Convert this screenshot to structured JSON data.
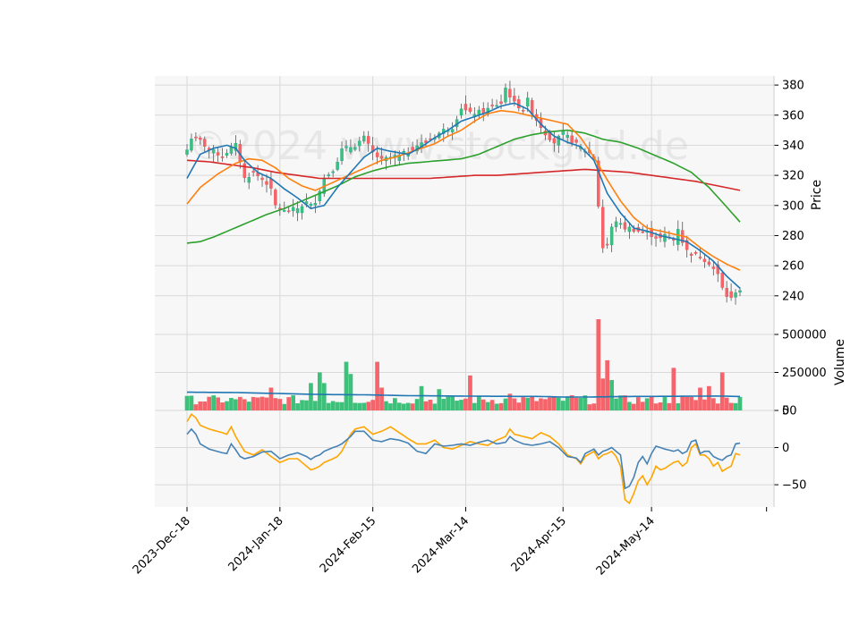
{
  "chart_data": {
    "type": "candlestick",
    "watermark": "©2024 www.stockgrid.de",
    "panels": {
      "price": {
        "ylabel": "Price",
        "ylim": [
          228,
          386
        ],
        "ticks": [
          240,
          260,
          280,
          300,
          320,
          340,
          360,
          380
        ]
      },
      "volume": {
        "ylabel": "Volume",
        "ylim": [
          0,
          600000
        ],
        "ticks": [
          0,
          250000,
          500000
        ],
        "tick_labels": [
          "0",
          "250000",
          "500000"
        ]
      },
      "oscillator": {
        "ylim": [
          -80,
          50
        ],
        "ticks": [
          -50,
          0,
          50
        ],
        "tick_labels": [
          "−50",
          "0",
          "50"
        ]
      }
    },
    "x_tick_labels": [
      "2023-Dec-18",
      "2024-Jan-18",
      "2024-Feb-15",
      "2024-Mar-14",
      "2024-Apr-15",
      "2024-May-14"
    ],
    "x_tick_index": [
      0,
      21,
      42,
      63,
      85,
      105
    ],
    "num_bars": 126,
    "colors": {
      "up": "#26a69a",
      "up_fill": "#3cc07a",
      "down": "#ef5350",
      "down_fill": "#f4646a",
      "sma_fast": "#1f77b4",
      "sma_mid": "#ff7f0e",
      "sma_slow": "#2ca02c",
      "sma_long": "#d62728",
      "vol_avg": "#1f77b4",
      "osc_a": "#4682b4",
      "osc_b": "#ffa500"
    },
    "close_anchors": [
      [
        0,
        337
      ],
      [
        1,
        345
      ],
      [
        3,
        343
      ],
      [
        5,
        337
      ],
      [
        8,
        333
      ],
      [
        10,
        338
      ],
      [
        11,
        340
      ],
      [
        12,
        330
      ],
      [
        13,
        318
      ],
      [
        15,
        322
      ],
      [
        18,
        315
      ],
      [
        19,
        310
      ],
      [
        20,
        300
      ],
      [
        22,
        296
      ],
      [
        25,
        298
      ],
      [
        27,
        302
      ],
      [
        28,
        300
      ],
      [
        29,
        303
      ],
      [
        31,
        318
      ],
      [
        33,
        324
      ],
      [
        34,
        330
      ],
      [
        35,
        337
      ],
      [
        38,
        340
      ],
      [
        40,
        345
      ],
      [
        42,
        335
      ],
      [
        44,
        330
      ],
      [
        46,
        332
      ],
      [
        48,
        333
      ],
      [
        50,
        336
      ],
      [
        52,
        340
      ],
      [
        54,
        342
      ],
      [
        56,
        346
      ],
      [
        58,
        350
      ],
      [
        60,
        352
      ],
      [
        62,
        365
      ],
      [
        64,
        361
      ],
      [
        66,
        362
      ],
      [
        67,
        362
      ],
      [
        69,
        366
      ],
      [
        71,
        368
      ],
      [
        72,
        378
      ],
      [
        73,
        373
      ],
      [
        74,
        368
      ],
      [
        76,
        364
      ],
      [
        77,
        370
      ],
      [
        78,
        362
      ],
      [
        79,
        357
      ],
      [
        81,
        348
      ],
      [
        83,
        342
      ],
      [
        85,
        348
      ],
      [
        87,
        343
      ],
      [
        89,
        338
      ],
      [
        91,
        335
      ],
      [
        92,
        332
      ],
      [
        93,
        300
      ],
      [
        94,
        272
      ],
      [
        95,
        274
      ],
      [
        96,
        285
      ],
      [
        97,
        290
      ],
      [
        98,
        287
      ],
      [
        99,
        285
      ],
      [
        100,
        285
      ],
      [
        102,
        283
      ],
      [
        104,
        282
      ],
      [
        106,
        279
      ],
      [
        107,
        278
      ],
      [
        108,
        280
      ],
      [
        110,
        277
      ],
      [
        111,
        285
      ],
      [
        112,
        276
      ],
      [
        113,
        270
      ],
      [
        114,
        268
      ],
      [
        116,
        266
      ],
      [
        118,
        262
      ],
      [
        120,
        254
      ],
      [
        121,
        245
      ],
      [
        122,
        240
      ],
      [
        123,
        238
      ],
      [
        124,
        243
      ],
      [
        125,
        244
      ]
    ],
    "sma_fast": [
      [
        0,
        318
      ],
      [
        3,
        334
      ],
      [
        6,
        338
      ],
      [
        9,
        340
      ],
      [
        11,
        338
      ],
      [
        13,
        330
      ],
      [
        16,
        322
      ],
      [
        19,
        318
      ],
      [
        22,
        311
      ],
      [
        25,
        305
      ],
      [
        28,
        298
      ],
      [
        31,
        300
      ],
      [
        34,
        312
      ],
      [
        37,
        322
      ],
      [
        40,
        332
      ],
      [
        43,
        338
      ],
      [
        46,
        336
      ],
      [
        50,
        334
      ],
      [
        53,
        339
      ],
      [
        56,
        345
      ],
      [
        59,
        350
      ],
      [
        62,
        356
      ],
      [
        65,
        359
      ],
      [
        68,
        362
      ],
      [
        71,
        366
      ],
      [
        74,
        368
      ],
      [
        77,
        364
      ],
      [
        80,
        354
      ],
      [
        83,
        346
      ],
      [
        86,
        342
      ],
      [
        89,
        339
      ],
      [
        92,
        330
      ],
      [
        95,
        308
      ],
      [
        98,
        295
      ],
      [
        101,
        285
      ],
      [
        104,
        283
      ],
      [
        107,
        280
      ],
      [
        110,
        278
      ],
      [
        113,
        276
      ],
      [
        116,
        270
      ],
      [
        119,
        263
      ],
      [
        122,
        253
      ],
      [
        125,
        245
      ]
    ],
    "sma_mid": [
      [
        0,
        301
      ],
      [
        3,
        312
      ],
      [
        7,
        321
      ],
      [
        11,
        328
      ],
      [
        14,
        331
      ],
      [
        17,
        330
      ],
      [
        20,
        325
      ],
      [
        23,
        318
      ],
      [
        26,
        313
      ],
      [
        29,
        310
      ],
      [
        32,
        314
      ],
      [
        35,
        318
      ],
      [
        38,
        322
      ],
      [
        41,
        326
      ],
      [
        44,
        330
      ],
      [
        47,
        332
      ],
      [
        50,
        335
      ],
      [
        53,
        338
      ],
      [
        56,
        341
      ],
      [
        59,
        346
      ],
      [
        62,
        350
      ],
      [
        65,
        356
      ],
      [
        68,
        361
      ],
      [
        71,
        363
      ],
      [
        74,
        362
      ],
      [
        77,
        360
      ],
      [
        80,
        358
      ],
      [
        83,
        356
      ],
      [
        86,
        354
      ],
      [
        89,
        345
      ],
      [
        92,
        332
      ],
      [
        95,
        317
      ],
      [
        98,
        303
      ],
      [
        101,
        292
      ],
      [
        104,
        285
      ],
      [
        107,
        283
      ],
      [
        110,
        281
      ],
      [
        113,
        279
      ],
      [
        116,
        272
      ],
      [
        119,
        266
      ],
      [
        122,
        261
      ],
      [
        125,
        257
      ]
    ],
    "sma_slow": [
      [
        0,
        275
      ],
      [
        3,
        276
      ],
      [
        6,
        279
      ],
      [
        10,
        284
      ],
      [
        14,
        289
      ],
      [
        18,
        294
      ],
      [
        22,
        298
      ],
      [
        26,
        303
      ],
      [
        30,
        308
      ],
      [
        34,
        313
      ],
      [
        38,
        319
      ],
      [
        42,
        323
      ],
      [
        46,
        326
      ],
      [
        50,
        328
      ],
      [
        54,
        329
      ],
      [
        58,
        330
      ],
      [
        62,
        331
      ],
      [
        66,
        334
      ],
      [
        70,
        339
      ],
      [
        74,
        344
      ],
      [
        78,
        347
      ],
      [
        82,
        349
      ],
      [
        86,
        350
      ],
      [
        90,
        348
      ],
      [
        94,
        344
      ],
      [
        98,
        342
      ],
      [
        102,
        338
      ],
      [
        106,
        333
      ],
      [
        110,
        328
      ],
      [
        114,
        322
      ],
      [
        118,
        312
      ],
      [
        122,
        299
      ],
      [
        125,
        289
      ]
    ],
    "sma_long": [
      [
        0,
        330
      ],
      [
        5,
        329
      ],
      [
        10,
        327
      ],
      [
        15,
        325
      ],
      [
        20,
        322
      ],
      [
        25,
        320
      ],
      [
        30,
        318
      ],
      [
        35,
        318
      ],
      [
        40,
        318
      ],
      [
        45,
        318
      ],
      [
        50,
        318
      ],
      [
        55,
        318
      ],
      [
        60,
        319
      ],
      [
        65,
        320
      ],
      [
        70,
        320
      ],
      [
        75,
        321
      ],
      [
        80,
        322
      ],
      [
        85,
        323
      ],
      [
        90,
        324
      ],
      [
        95,
        323
      ],
      [
        100,
        322
      ],
      [
        105,
        320
      ],
      [
        110,
        318
      ],
      [
        115,
        316
      ],
      [
        120,
        313
      ],
      [
        125,
        310
      ]
    ],
    "volume_avg": [
      [
        0,
        120000
      ],
      [
        10,
        118000
      ],
      [
        20,
        112000
      ],
      [
        30,
        105000
      ],
      [
        40,
        103000
      ],
      [
        50,
        97000
      ],
      [
        60,
        95000
      ],
      [
        70,
        93000
      ],
      [
        80,
        92000
      ],
      [
        85,
        88000
      ],
      [
        90,
        88000
      ],
      [
        100,
        92000
      ],
      [
        110,
        93000
      ],
      [
        120,
        95000
      ],
      [
        125,
        92000
      ]
    ],
    "volume_spikes": [
      [
        19,
        150000
      ],
      [
        28,
        180000
      ],
      [
        30,
        250000
      ],
      [
        31,
        180000
      ],
      [
        36,
        320000
      ],
      [
        37,
        240000
      ],
      [
        43,
        320000
      ],
      [
        44,
        150000
      ],
      [
        53,
        160000
      ],
      [
        57,
        140000
      ],
      [
        64,
        230000
      ],
      [
        73,
        110000
      ],
      [
        87,
        100000
      ],
      [
        93,
        600000
      ],
      [
        94,
        210000
      ],
      [
        95,
        330000
      ],
      [
        96,
        200000
      ],
      [
        110,
        280000
      ],
      [
        116,
        150000
      ],
      [
        118,
        160000
      ],
      [
        121,
        250000
      ]
    ],
    "osc_a": [
      [
        0,
        18
      ],
      [
        1,
        25
      ],
      [
        2,
        18
      ],
      [
        3,
        5
      ],
      [
        5,
        -2
      ],
      [
        8,
        -7
      ],
      [
        9,
        -8
      ],
      [
        10,
        5
      ],
      [
        11,
        -3
      ],
      [
        12,
        -12
      ],
      [
        13,
        -15
      ],
      [
        15,
        -12
      ],
      [
        17,
        -6
      ],
      [
        19,
        -5
      ],
      [
        21,
        -15
      ],
      [
        23,
        -10
      ],
      [
        25,
        -7
      ],
      [
        27,
        -12
      ],
      [
        28,
        -16
      ],
      [
        29,
        -12
      ],
      [
        30,
        -10
      ],
      [
        31,
        -5
      ],
      [
        33,
        0
      ],
      [
        34,
        2
      ],
      [
        35,
        5
      ],
      [
        37,
        15
      ],
      [
        38,
        22
      ],
      [
        40,
        22
      ],
      [
        42,
        10
      ],
      [
        44,
        8
      ],
      [
        46,
        12
      ],
      [
        48,
        10
      ],
      [
        50,
        6
      ],
      [
        52,
        -5
      ],
      [
        54,
        -8
      ],
      [
        56,
        5
      ],
      [
        58,
        2
      ],
      [
        60,
        3
      ],
      [
        62,
        5
      ],
      [
        64,
        3
      ],
      [
        66,
        7
      ],
      [
        68,
        10
      ],
      [
        70,
        5
      ],
      [
        72,
        7
      ],
      [
        73,
        15
      ],
      [
        74,
        10
      ],
      [
        76,
        5
      ],
      [
        78,
        3
      ],
      [
        80,
        5
      ],
      [
        82,
        8
      ],
      [
        84,
        0
      ],
      [
        86,
        -12
      ],
      [
        88,
        -14
      ],
      [
        89,
        -20
      ],
      [
        90,
        -8
      ],
      [
        92,
        -2
      ],
      [
        93,
        -10
      ],
      [
        94,
        -5
      ],
      [
        95,
        -3
      ],
      [
        96,
        0
      ],
      [
        97,
        -5
      ],
      [
        98,
        -10
      ],
      [
        99,
        -55
      ],
      [
        100,
        -52
      ],
      [
        101,
        -40
      ],
      [
        102,
        -20
      ],
      [
        103,
        -12
      ],
      [
        104,
        -22
      ],
      [
        105,
        -8
      ],
      [
        106,
        2
      ],
      [
        107,
        0
      ],
      [
        108,
        -2
      ],
      [
        110,
        -5
      ],
      [
        111,
        -3
      ],
      [
        112,
        -8
      ],
      [
        113,
        -5
      ],
      [
        114,
        8
      ],
      [
        115,
        10
      ],
      [
        116,
        -8
      ],
      [
        117,
        -5
      ],
      [
        118,
        -5
      ],
      [
        119,
        -12
      ],
      [
        120,
        -15
      ],
      [
        121,
        -17
      ],
      [
        122,
        -12
      ],
      [
        123,
        -10
      ],
      [
        124,
        5
      ],
      [
        125,
        6
      ]
    ],
    "osc_b": [
      [
        0,
        35
      ],
      [
        1,
        45
      ],
      [
        2,
        40
      ],
      [
        3,
        30
      ],
      [
        5,
        25
      ],
      [
        8,
        20
      ],
      [
        9,
        18
      ],
      [
        10,
        28
      ],
      [
        11,
        15
      ],
      [
        12,
        5
      ],
      [
        13,
        -5
      ],
      [
        15,
        -10
      ],
      [
        17,
        -3
      ],
      [
        19,
        -12
      ],
      [
        21,
        -20
      ],
      [
        23,
        -15
      ],
      [
        25,
        -15
      ],
      [
        27,
        -25
      ],
      [
        28,
        -30
      ],
      [
        29,
        -28
      ],
      [
        30,
        -25
      ],
      [
        31,
        -20
      ],
      [
        33,
        -15
      ],
      [
        34,
        -12
      ],
      [
        35,
        -5
      ],
      [
        37,
        18
      ],
      [
        38,
        25
      ],
      [
        40,
        28
      ],
      [
        42,
        18
      ],
      [
        44,
        22
      ],
      [
        46,
        28
      ],
      [
        48,
        20
      ],
      [
        50,
        12
      ],
      [
        52,
        5
      ],
      [
        54,
        5
      ],
      [
        56,
        10
      ],
      [
        58,
        0
      ],
      [
        60,
        -2
      ],
      [
        62,
        3
      ],
      [
        64,
        8
      ],
      [
        66,
        5
      ],
      [
        68,
        3
      ],
      [
        70,
        10
      ],
      [
        72,
        15
      ],
      [
        73,
        25
      ],
      [
        74,
        18
      ],
      [
        76,
        15
      ],
      [
        78,
        12
      ],
      [
        80,
        20
      ],
      [
        82,
        15
      ],
      [
        84,
        5
      ],
      [
        86,
        -10
      ],
      [
        88,
        -15
      ],
      [
        89,
        -22
      ],
      [
        90,
        -12
      ],
      [
        92,
        -5
      ],
      [
        93,
        -15
      ],
      [
        94,
        -10
      ],
      [
        95,
        -8
      ],
      [
        96,
        -5
      ],
      [
        97,
        -12
      ],
      [
        98,
        -25
      ],
      [
        99,
        -70
      ],
      [
        100,
        -75
      ],
      [
        101,
        -62
      ],
      [
        102,
        -45
      ],
      [
        103,
        -38
      ],
      [
        104,
        -50
      ],
      [
        105,
        -40
      ],
      [
        106,
        -25
      ],
      [
        107,
        -30
      ],
      [
        108,
        -28
      ],
      [
        110,
        -20
      ],
      [
        111,
        -18
      ],
      [
        112,
        -25
      ],
      [
        113,
        -20
      ],
      [
        114,
        0
      ],
      [
        115,
        5
      ],
      [
        116,
        -10
      ],
      [
        117,
        -10
      ],
      [
        118,
        -15
      ],
      [
        119,
        -25
      ],
      [
        120,
        -20
      ],
      [
        121,
        -32
      ],
      [
        122,
        -28
      ],
      [
        123,
        -25
      ],
      [
        124,
        -8
      ],
      [
        125,
        -10
      ]
    ]
  }
}
